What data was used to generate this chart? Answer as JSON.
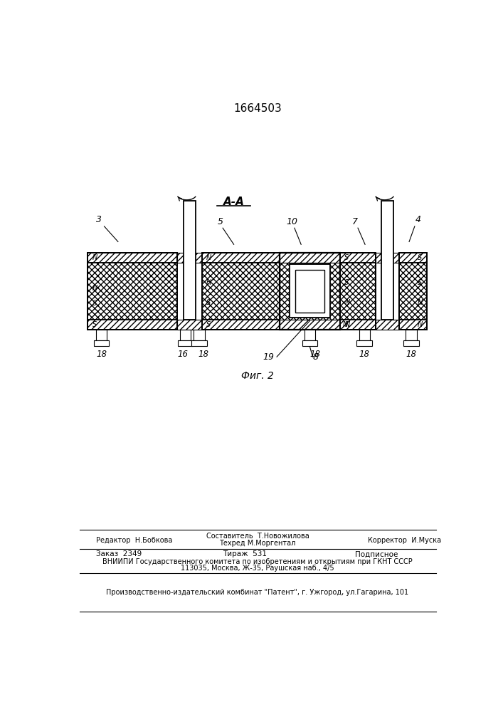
{
  "title": "1664503",
  "section_label": "А-А",
  "fig_label": "Фиг. 2",
  "bg_color": "#ffffff",
  "line_color": "#000000",
  "footer3": "Производственно-издательский комбинат \"Патент\", г. Ужгород, ул.Гагарина, 101"
}
